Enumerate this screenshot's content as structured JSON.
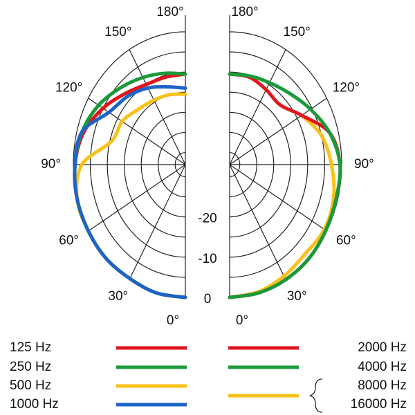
{
  "chart_data": [
    {
      "type": "polar",
      "side": "left",
      "x": [
        0,
        15,
        30,
        45,
        60,
        75,
        90,
        105,
        120,
        135,
        150,
        165,
        180
      ],
      "rlim": [
        -33,
        0
      ],
      "rticks": [
        0,
        -10,
        -20
      ],
      "rgrid": [
        -5,
        -15,
        -25,
        -30
      ],
      "xticks": [
        {
          "value": 0,
          "label": "0°"
        },
        {
          "value": 30,
          "label": "30°"
        },
        {
          "value": 60,
          "label": "60°"
        },
        {
          "value": 90,
          "label": "90°"
        },
        {
          "value": 120,
          "label": "120°"
        },
        {
          "value": 150,
          "label": "150°"
        },
        {
          "value": 180,
          "label": "180°"
        }
      ],
      "series": [
        {
          "name": "125 Hz",
          "color": "#e0161b",
          "values": [
            0,
            0,
            -0.3,
            0,
            0,
            0,
            -0.5,
            -2,
            -5,
            -8,
            -10,
            -10.5,
            -10.5
          ]
        },
        {
          "name": "250 Hz",
          "color": "#1a9a3a",
          "values": [
            0,
            0,
            -0.3,
            0,
            0,
            0,
            -0.5,
            -1.5,
            -3.5,
            -6,
            -8,
            -9.5,
            -10.5
          ]
        },
        {
          "name": "500 Hz",
          "color": "#f9c21a",
          "values": [
            0,
            0,
            -0.3,
            0,
            0,
            0,
            -2.5,
            -10.5,
            -11.5,
            -13.5,
            -14.5,
            -15,
            -15.5
          ]
        },
        {
          "name": "1000 Hz",
          "color": "#1e64c8",
          "values": [
            0,
            0,
            -0.3,
            0,
            0,
            0,
            -0.5,
            -1.5,
            -7,
            -9,
            -11,
            -13,
            -14
          ]
        }
      ]
    },
    {
      "type": "polar",
      "side": "right",
      "x": [
        0,
        15,
        30,
        45,
        60,
        75,
        90,
        105,
        120,
        135,
        150,
        165,
        180
      ],
      "rlim": [
        -33,
        0
      ],
      "rgrid": [
        0,
        -5,
        -10,
        -15,
        -20,
        -25,
        -30
      ],
      "xticks": [
        {
          "value": 0,
          "label": "0°"
        },
        {
          "value": 30,
          "label": "30°"
        },
        {
          "value": 60,
          "label": "60°"
        },
        {
          "value": 90,
          "label": "90°"
        },
        {
          "value": 120,
          "label": "120°"
        },
        {
          "value": 150,
          "label": "150°"
        },
        {
          "value": 180,
          "label": "180°"
        }
      ],
      "series": [
        {
          "name": [
            "8000 Hz",
            "16000 Hz"
          ],
          "color": "#f9c21a",
          "values": [
            0,
            -0.3,
            -1,
            -1.6,
            -0.8,
            -1.3,
            -3,
            -5,
            -8.5,
            null,
            null,
            null,
            null
          ]
        },
        {
          "name": "2000 Hz",
          "color": "#e0161b",
          "values": [
            0,
            0,
            0,
            0,
            -0.3,
            -0.5,
            -0.5,
            -2.5,
            -8.5,
            -12,
            -11.5,
            -10.5,
            -10.5
          ]
        },
        {
          "name": "4000 Hz",
          "color": "#1a9a3a",
          "values": [
            0,
            0,
            0,
            0,
            -0.3,
            -0.5,
            -0.5,
            -2.5,
            -5.5,
            -8,
            -9.5,
            -10.2,
            -10.5
          ]
        }
      ]
    }
  ]
}
